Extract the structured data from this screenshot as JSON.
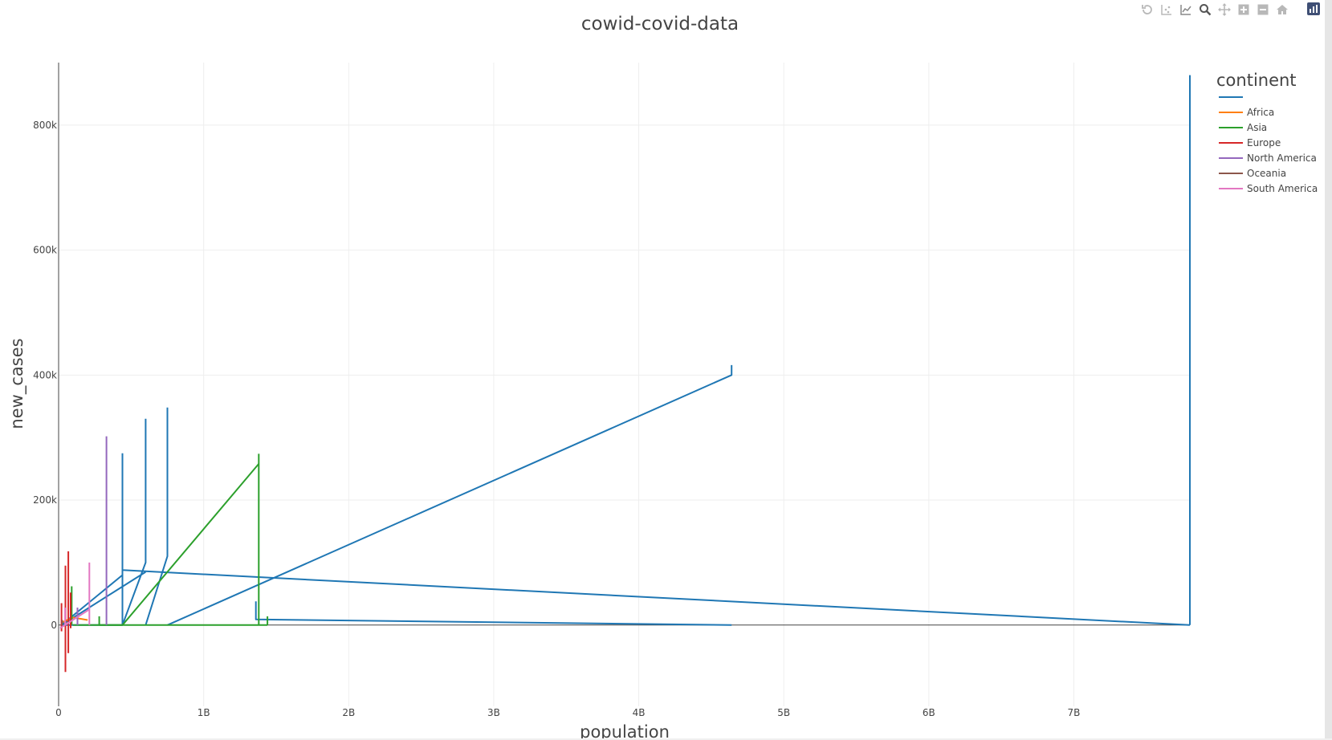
{
  "chart_data": {
    "type": "line",
    "title": "cowid-covid-data",
    "xlabel": "population",
    "ylabel": "new_cases",
    "xlim": [
      0,
      7800000000
    ],
    "ylim": [
      -130000,
      900000
    ],
    "x_ticks": [
      {
        "value": 0,
        "label": "0"
      },
      {
        "value": 1000000000,
        "label": "1B"
      },
      {
        "value": 2000000000,
        "label": "2B"
      },
      {
        "value": 3000000000,
        "label": "3B"
      },
      {
        "value": 4000000000,
        "label": "4B"
      },
      {
        "value": 5000000000,
        "label": "5B"
      },
      {
        "value": 6000000000,
        "label": "6B"
      },
      {
        "value": 7000000000,
        "label": "7B"
      }
    ],
    "y_ticks": [
      {
        "value": 0,
        "label": "0"
      },
      {
        "value": 200000,
        "label": "200k"
      },
      {
        "value": 400000,
        "label": "400k"
      },
      {
        "value": 600000,
        "label": "600k"
      },
      {
        "value": 800000,
        "label": "800k"
      }
    ],
    "grid": true,
    "legend": {
      "title": "continent",
      "placement": "right"
    },
    "series": [
      {
        "name": "",
        "color": "#1f77b4",
        "segments": [
          [
            [
              7800000000,
              0
            ],
            [
              7800000000,
              880000
            ]
          ],
          [
            [
              7800000000,
              0
            ],
            [
              440000000,
              88000
            ],
            [
              440000000,
              275000
            ]
          ],
          [
            [
              440000000,
              0
            ],
            [
              600000000,
              100000
            ],
            [
              600000000,
              330000
            ]
          ],
          [
            [
              600000000,
              0
            ],
            [
              750000000,
              110000
            ],
            [
              750000000,
              348000
            ]
          ],
          [
            [
              750000000,
              0
            ],
            [
              4640000000,
              400000
            ],
            [
              4640000000,
              416000
            ]
          ],
          [
            [
              4640000000,
              0
            ],
            [
              1360000000,
              9000
            ],
            [
              1360000000,
              38000
            ]
          ],
          [
            [
              440000000,
              162000
            ],
            [
              440000000,
              0
            ],
            [
              20000000,
              0
            ]
          ],
          [
            [
              20000000,
              0
            ],
            [
              440000000,
              80000
            ]
          ],
          [
            [
              20000000,
              0
            ],
            [
              600000000,
              85000
            ]
          ]
        ]
      },
      {
        "name": "Africa",
        "color": "#ff7f0e",
        "segments": [
          [
            [
              30000000,
              5000
            ],
            [
              100000000,
              12000
            ],
            [
              200000000,
              8000
            ]
          ]
        ]
      },
      {
        "name": "Asia",
        "color": "#2ca02c",
        "segments": [
          [
            [
              1440000000,
              0
            ],
            [
              1440000000,
              14000
            ]
          ],
          [
            [
              1380000000,
              0
            ],
            [
              1380000000,
              274000
            ]
          ],
          [
            [
              1380000000,
              258000
            ],
            [
              440000000,
              0
            ],
            [
              280000000,
              0
            ],
            [
              280000000,
              14000
            ]
          ],
          [
            [
              100000000,
              0
            ],
            [
              1440000000,
              0
            ]
          ],
          [
            [
              90000000,
              0
            ],
            [
              90000000,
              62000
            ]
          ]
        ]
      },
      {
        "name": "Europe",
        "color": "#d62728",
        "segments": [
          [
            [
              67000000,
              -45000
            ],
            [
              67000000,
              118000
            ]
          ],
          [
            [
              47000000,
              -75000
            ],
            [
              47000000,
              95000
            ]
          ],
          [
            [
              83000000,
              -5000
            ],
            [
              83000000,
              52000
            ]
          ],
          [
            [
              20000000,
              -10000
            ],
            [
              20000000,
              35000
            ]
          ]
        ]
      },
      {
        "name": "North America",
        "color": "#9467bd",
        "segments": [
          [
            [
              330000000,
              0
            ],
            [
              330000000,
              302000
            ]
          ],
          [
            [
              130000000,
              0
            ],
            [
              130000000,
              28000
            ]
          ]
        ]
      },
      {
        "name": "Oceania",
        "color": "#8c564b",
        "segments": [
          [
            [
              25000000,
              0
            ],
            [
              25000000,
              8000
            ]
          ]
        ]
      },
      {
        "name": "South America",
        "color": "#e377c2",
        "segments": [
          [
            [
              212000000,
              0
            ],
            [
              212000000,
              100000
            ]
          ],
          [
            [
              10000000,
              -5000
            ],
            [
              212000000,
              25000
            ]
          ],
          [
            [
              45000000,
              0
            ],
            [
              45000000,
              28000
            ]
          ]
        ]
      }
    ]
  },
  "modebar": {
    "icons": [
      "undo-icon",
      "autoscale-icon",
      "line-compare-icon",
      "zoom-icon",
      "pan-icon",
      "zoom-in-icon",
      "zoom-out-icon",
      "home-icon"
    ],
    "logo": "plotly-logo"
  }
}
